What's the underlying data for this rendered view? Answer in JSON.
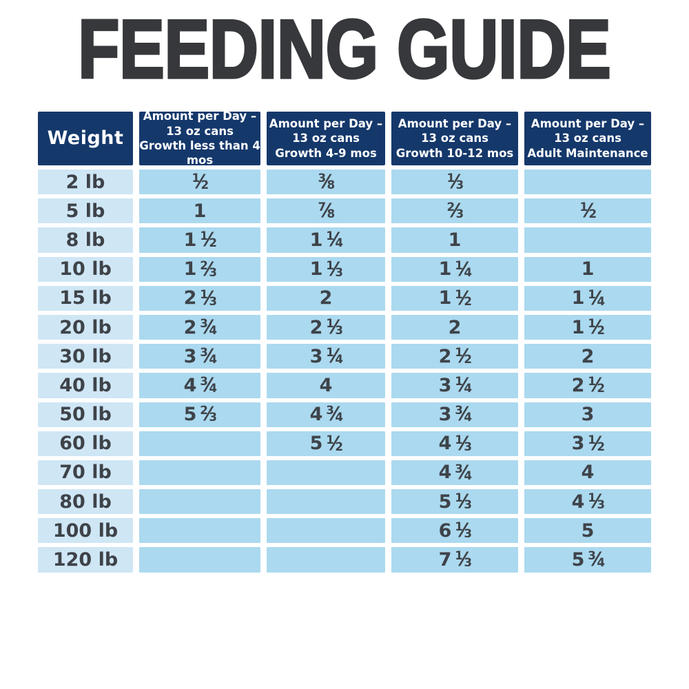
{
  "title": {
    "text": "FEEDING GUIDE"
  },
  "colors": {
    "page_background": "#ffffff",
    "title_text": "#37383b",
    "header_bg": "#15386b",
    "header_text": "#ffffff",
    "weight_cell_bg": "#cfe6f5",
    "amount_cell_bg": "#abd9ef",
    "cell_text": "#3e4349"
  },
  "table": {
    "header": {
      "weight_label": "Weight",
      "columns": [
        {
          "lines": [
            "Amount per Day –",
            "13 oz cans",
            "Growth less than 4 mos"
          ]
        },
        {
          "lines": [
            "Amount per Day –",
            "13 oz cans",
            "Growth 4-9 mos"
          ]
        },
        {
          "lines": [
            "Amount per Day –",
            "13 oz cans",
            "Growth 10-12 mos"
          ]
        },
        {
          "lines": [
            "Amount per Day –",
            "13 oz cans",
            "Adult Maintenance"
          ]
        }
      ]
    },
    "rows": [
      {
        "weight": "2 lb",
        "values": [
          "1/2",
          "3/8",
          "1/3",
          ""
        ]
      },
      {
        "weight": "5 lb",
        "values": [
          "1",
          "7/8",
          "2/3",
          "1/2"
        ]
      },
      {
        "weight": "8 lb",
        "values": [
          "1 1/2",
          "1 1/4",
          "1",
          ""
        ]
      },
      {
        "weight": "10 lb",
        "values": [
          "1 2/3",
          "1 1/3",
          "1 1/4",
          "1"
        ]
      },
      {
        "weight": "15 lb",
        "values": [
          "2 1/3",
          "2",
          "1 1/2",
          "1 1/4"
        ]
      },
      {
        "weight": "20 lb",
        "values": [
          "2 3/4",
          "2 1/3",
          "2",
          "1 1/2"
        ]
      },
      {
        "weight": "30 lb",
        "values": [
          "3 3/4",
          "3 1/4",
          "2 1/2",
          "2"
        ]
      },
      {
        "weight": "40 lb",
        "values": [
          "4 3/4",
          "4",
          "3 1/4",
          "2 1/2"
        ]
      },
      {
        "weight": "50 lb",
        "values": [
          "5 2/3",
          "4 3/4",
          "3 3/4",
          "3"
        ]
      },
      {
        "weight": "60 lb",
        "values": [
          "",
          "5 1/2",
          "4 1/3",
          "3 1/2"
        ]
      },
      {
        "weight": "70 lb",
        "values": [
          "",
          "",
          "4 3/4",
          "4"
        ]
      },
      {
        "weight": "80 lb",
        "values": [
          "",
          "",
          "5 1/3",
          "4 1/3"
        ]
      },
      {
        "weight": "100 lb",
        "values": [
          "",
          "",
          "6 1/3",
          "5"
        ]
      },
      {
        "weight": "120 lb",
        "values": [
          "",
          "",
          "7 1/3",
          "5 3/4"
        ]
      }
    ]
  },
  "chart_data": {
    "type": "table",
    "title": "FEEDING GUIDE",
    "columns": [
      "Weight",
      "Amount per Day – 13 oz cans Growth less than 4 mos",
      "Amount per Day – 13 oz cans Growth 4-9 mos",
      "Amount per Day – 13 oz cans Growth 10-12 mos",
      "Amount per Day – 13 oz cans Adult Maintenance"
    ],
    "rows": [
      [
        "2 lb",
        "1/2",
        "3/8",
        "1/3",
        ""
      ],
      [
        "5 lb",
        "1",
        "7/8",
        "2/3",
        "1/2"
      ],
      [
        "8 lb",
        "1 1/2",
        "1 1/4",
        "1",
        ""
      ],
      [
        "10 lb",
        "1 2/3",
        "1 1/3",
        "1 1/4",
        "1"
      ],
      [
        "15 lb",
        "2 1/3",
        "2",
        "1 1/2",
        "1 1/4"
      ],
      [
        "20 lb",
        "2 3/4",
        "2 1/3",
        "2",
        "1 1/2"
      ],
      [
        "30 lb",
        "3 3/4",
        "3 1/4",
        "2 1/2",
        "2"
      ],
      [
        "40 lb",
        "4 3/4",
        "4",
        "3 1/4",
        "2 1/2"
      ],
      [
        "50 lb",
        "5 2/3",
        "4 3/4",
        "3 3/4",
        "3"
      ],
      [
        "60 lb",
        "",
        "5 1/2",
        "4 1/3",
        "3 1/2"
      ],
      [
        "70 lb",
        "",
        "",
        "4 3/4",
        "4"
      ],
      [
        "80 lb",
        "",
        "",
        "5 1/3",
        "4 1/3"
      ],
      [
        "100 lb",
        "",
        "",
        "6 1/3",
        "5"
      ],
      [
        "120 lb",
        "",
        "",
        "7 1/3",
        "5 3/4"
      ]
    ]
  }
}
